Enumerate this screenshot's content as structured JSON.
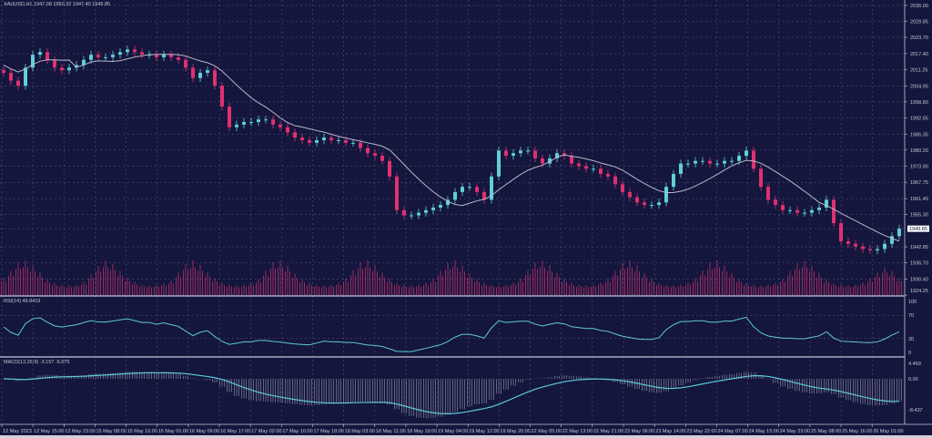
{
  "chart_data": {
    "type": "candlestick",
    "header": "XAUUSD,H1  1947.08 1950.32 1947.40 1949.85",
    "symbol": "XAUUSD",
    "timeframe": "H1",
    "current_price": "1949.85",
    "price_axis": {
      "range": [
        1924.25,
        2036.0
      ],
      "ticks": [
        "2036.00",
        "2029.85",
        "2023.70",
        "2017.40",
        "2011.25",
        "2004.95",
        "1998.80",
        "1992.65",
        "1986.35",
        "1980.20",
        "1973.90",
        "1967.75",
        "1961.45",
        "1955.30",
        "1949.85",
        "1942.85",
        "1936.70",
        "1930.40",
        "1924.25"
      ]
    },
    "time_axis": [
      "12 May 2023",
      "12 May 15:00",
      "12 May 23:00",
      "15 May 08:00",
      "15 May 16:00",
      "16 May 01:00",
      "16 May 09:00",
      "16 May 17:00",
      "17 May 02:00",
      "17 May 10:00",
      "17 May 18:00",
      "18 May 03:00",
      "18 May 11:00",
      "18 May 19:00",
      "19 May 04:00",
      "19 May 12:00",
      "19 May 20:00",
      "22 May 05:00",
      "22 May 13:00",
      "22 May 21:00",
      "23 May 06:00",
      "23 May 14:00",
      "23 May 22:00",
      "24 May 07:00",
      "24 May 15:00",
      "24 May 23:00",
      "25 May 08:00",
      "25 May 16:00",
      "26 May 01:00"
    ],
    "close": [
      2010,
      2007,
      2005,
      2012,
      2017,
      2018,
      2015,
      2012,
      2011,
      2012,
      2013,
      2015,
      2017,
      2016,
      2016,
      2017,
      2018,
      2019,
      2018,
      2017,
      2017,
      2016,
      2017,
      2016,
      2015,
      2012,
      2008,
      2010,
      2011,
      2005,
      1997,
      1989,
      1990,
      1991,
      1991,
      1992,
      1992,
      1990,
      1989,
      1987,
      1985,
      1984,
      1983,
      1984,
      1985,
      1984,
      1984,
      1983,
      1983,
      1981,
      1979,
      1978,
      1976,
      1970,
      1957,
      1955,
      1955,
      1956,
      1957,
      1958,
      1959,
      1961,
      1964,
      1966,
      1966,
      1964,
      1961,
      1970,
      1980,
      1978,
      1979,
      1980,
      1980,
      1977,
      1975,
      1977,
      1979,
      1978,
      1975,
      1974,
      1973,
      1973,
      1971,
      1970,
      1967,
      1964,
      1962,
      1960,
      1959,
      1959,
      1960,
      1966,
      1971,
      1975,
      1975,
      1976,
      1976,
      1975,
      1975,
      1976,
      1976,
      1978,
      1980,
      1973,
      1966,
      1961,
      1959,
      1957,
      1957,
      1956,
      1956,
      1957,
      1958,
      1961,
      1952,
      1945,
      1944,
      1943,
      1942,
      1941.5,
      1942,
      1944,
      1947,
      1949.85
    ],
    "volume": [
      500,
      700,
      950,
      1000,
      850,
      650,
      450,
      350,
      300,
      280,
      300,
      380,
      600,
      850,
      1000,
      900,
      700,
      500,
      380,
      300,
      280,
      290,
      330,
      420,
      650,
      900,
      1000,
      880,
      650,
      480,
      360,
      300,
      280,
      300,
      350,
      450,
      700,
      950,
      1000,
      850,
      620,
      460,
      350,
      300,
      280,
      300,
      360,
      480,
      720,
      950,
      1000,
      860,
      640,
      470,
      350,
      300,
      280,
      300,
      360,
      470,
      700,
      920,
      1000,
      850,
      630,
      460,
      350,
      300,
      280,
      300,
      360,
      480,
      720,
      940,
      1000,
      860,
      640,
      470,
      350,
      300,
      280,
      300,
      360,
      470,
      700,
      930,
      1000,
      850,
      630,
      460,
      350,
      300,
      280,
      300,
      360,
      480,
      710,
      940,
      1000,
      860,
      640,
      470,
      350,
      300,
      280,
      300,
      360,
      470,
      700,
      930,
      1000,
      850,
      630,
      460,
      350,
      300,
      280,
      300,
      360,
      480,
      650,
      800,
      700,
      500
    ],
    "moving_average": {
      "color": "#b8b8c8"
    },
    "rsi": {
      "label": "RSI(14) 49.8419",
      "period": 14,
      "levels": [
        "100",
        "70",
        "30",
        "0"
      ],
      "color": "#5fc8d8"
    },
    "macd": {
      "label": "MACD(12,26,9) -3.157 -5.075",
      "fast": 12,
      "slow": 26,
      "signal": 9,
      "range": [
        -8.437,
        4.469
      ],
      "ticks": [
        "4.469",
        "0.00",
        "-8.437"
      ],
      "color": "#5fc8d8"
    },
    "colors": {
      "background": "#14163d",
      "bull": "#5fd0d8",
      "bear": "#e0306f",
      "volume": "#c0306a",
      "grid": "#5a5c80"
    }
  }
}
